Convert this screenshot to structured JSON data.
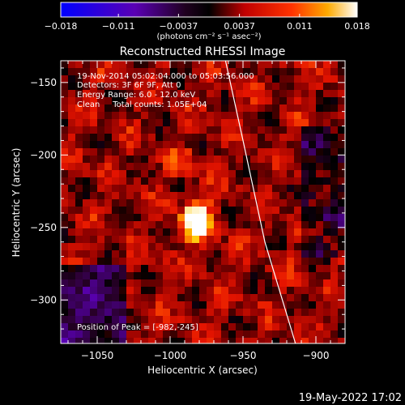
{
  "chart_data": {
    "type": "heatmap",
    "title": "Reconstructed RHESSI Image",
    "xlabel": "Heliocentric X (arcsec)",
    "ylabel": "Heliocentric Y (arcsec)",
    "xlim": [
      -1075,
      -880
    ],
    "ylim": [
      -330,
      -135
    ],
    "x_ticks": [
      -1050,
      -1000,
      -950,
      -900
    ],
    "x_tick_labels": [
      "−1050",
      "−1000",
      "−950",
      "−900"
    ],
    "y_ticks": [
      -150,
      -200,
      -250,
      -300
    ],
    "y_tick_labels": [
      "−150",
      "−200",
      "−250",
      "−300"
    ],
    "colorbar": {
      "range": [
        -0.018,
        0.018
      ],
      "ticks": [
        -0.018,
        -0.011,
        -0.0037,
        0.0037,
        0.011,
        0.018
      ],
      "tick_labels": [
        "−0.018",
        "−0.011",
        "−0.0037",
        "0.0037",
        "0.011",
        "0.018"
      ],
      "unit_label": "(photons cm⁻² s⁻¹ asec⁻²)",
      "colormap": [
        "#0000ff",
        "#5a00b4",
        "#200020",
        "#000000",
        "#ff0000",
        "#ff8800",
        "#ffff00",
        "#ffffff"
      ]
    },
    "annotations": {
      "time_range": "19-Nov-2014 05:02:04.000 to 05:03:56.000",
      "detectors": "Detectors: 3F 6F 9F, Att 0",
      "energy": "Energy Range: 6.0 - 12.0 keV",
      "method": "Clean     Total counts: 1.05E+04",
      "peak": "Position of Peak = [-982,-245]"
    },
    "peak": {
      "x": -982,
      "y": -245,
      "value": 0.018
    },
    "limb": [
      [
        -962,
        -135
      ],
      [
        -950,
        -190
      ],
      [
        -935,
        -260
      ],
      [
        -914,
        -330
      ]
    ]
  },
  "footer_timestamp": "19-May-2022 17:02"
}
